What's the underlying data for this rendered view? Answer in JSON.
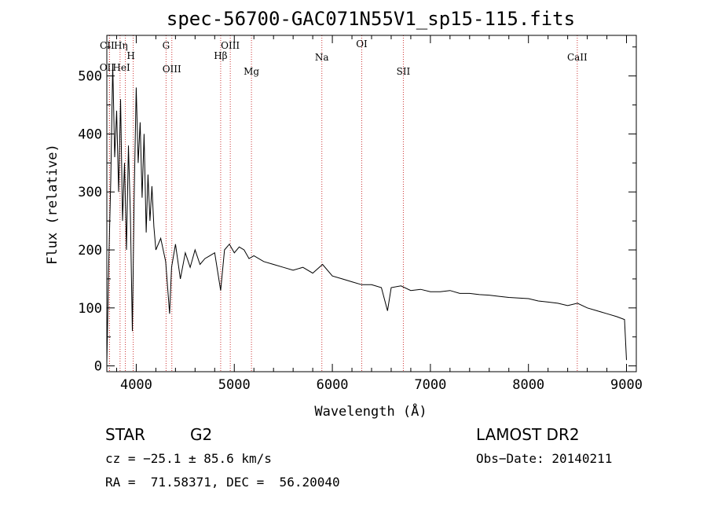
{
  "chart_data": {
    "type": "line",
    "title": "spec-56700-GAC071N55V1_sp15-115.fits",
    "xlabel": "Wavelength (Å)",
    "ylabel": "Flux (relative)",
    "xlim": [
      3700,
      9100
    ],
    "ylim": [
      -10,
      570
    ],
    "xticks": [
      4000,
      5000,
      6000,
      7000,
      8000,
      9000
    ],
    "yticks": [
      0,
      100,
      200,
      300,
      400,
      500
    ],
    "grid": false,
    "series": [
      {
        "x": [
          3700,
          3720,
          3740,
          3760,
          3780,
          3800,
          3820,
          3840,
          3860,
          3880,
          3900,
          3920,
          3940,
          3960,
          3980,
          4000,
          4020,
          4040,
          4060,
          4080,
          4101,
          4120,
          4140,
          4160,
          4180,
          4200,
          4250,
          4300,
          4340,
          4360,
          4400,
          4450,
          4500,
          4550,
          4600,
          4650,
          4700,
          4750,
          4800,
          4861,
          4900,
          4950,
          5000,
          5050,
          5100,
          5150,
          5200,
          5300,
          5400,
          5500,
          5600,
          5700,
          5800,
          5900,
          6000,
          6100,
          6200,
          6300,
          6400,
          6500,
          6563,
          6600,
          6700,
          6800,
          6900,
          7000,
          7100,
          7200,
          7300,
          7400,
          7500,
          7600,
          7700,
          7800,
          7900,
          8000,
          8100,
          8200,
          8300,
          8400,
          8500,
          8600,
          8700,
          8800,
          8900,
          8980,
          9000
        ],
        "y": [
          5,
          180,
          320,
          520,
          360,
          440,
          300,
          460,
          250,
          350,
          200,
          380,
          260,
          60,
          300,
          480,
          350,
          420,
          290,
          400,
          230,
          330,
          250,
          310,
          240,
          200,
          220,
          180,
          90,
          170,
          210,
          150,
          195,
          170,
          200,
          175,
          185,
          190,
          195,
          130,
          200,
          210,
          195,
          205,
          200,
          185,
          190,
          180,
          175,
          170,
          165,
          170,
          160,
          175,
          155,
          150,
          145,
          140,
          140,
          135,
          95,
          135,
          138,
          130,
          132,
          128,
          128,
          130,
          125,
          125,
          123,
          122,
          120,
          118,
          117,
          116,
          112,
          110,
          108,
          104,
          108,
          100,
          95,
          90,
          85,
          80,
          10
        ]
      }
    ],
    "lines": [
      {
        "name": "CII",
        "x": 3727
      },
      {
        "name": "OII",
        "x": 3727
      },
      {
        "name": "Hη",
        "x": 3835
      },
      {
        "name": "HeI",
        "x": 3889
      },
      {
        "name": "H",
        "x": 3969
      },
      {
        "name": "G",
        "x": 4304
      },
      {
        "name": "OIII",
        "x": 4363
      },
      {
        "name": "Hβ",
        "x": 4861
      },
      {
        "name": "OIII",
        "x": 4959
      },
      {
        "name": "Mg",
        "x": 5175
      },
      {
        "name": "Na",
        "x": 5893
      },
      {
        "name": "OI",
        "x": 6300
      },
      {
        "name": "SII",
        "x": 6724
      },
      {
        "name": "CaII",
        "x": 8498
      }
    ]
  },
  "info": {
    "object_class": "STAR",
    "subclass": "G2",
    "cz": "cz = −25.1 ± 85.6 km/s",
    "coords": "RA =  71.58371, DEC =  56.20040",
    "survey": "LAMOST DR2",
    "obs_date": "Obs−Date: 20140211"
  },
  "colors": {
    "spectrum": "#000000",
    "emission_line": "#cc3333",
    "frame": "#000000"
  }
}
